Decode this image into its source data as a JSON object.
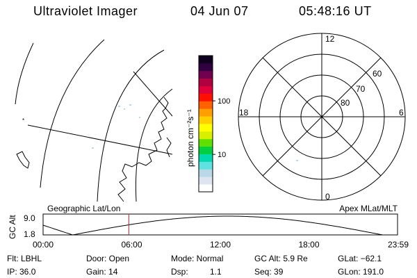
{
  "header": {
    "title": "Ultraviolet Imager",
    "date": "04 Jun 07",
    "time": "05:48:16 UT"
  },
  "colorbar": {
    "unit_label": "photon cm⁻²s⁻¹",
    "tick_labels": [
      "100",
      "10"
    ],
    "tick_values": [
      100,
      10
    ],
    "range": [
      2,
      700
    ],
    "colors": [
      "#ffffff",
      "#dde6f0",
      "#b8d8e8",
      "#60e0e0",
      "#00d8b0",
      "#00d040",
      "#60e000",
      "#d8f000",
      "#ffff00",
      "#ffd000",
      "#ffa000",
      "#ff6000",
      "#ff1000",
      "#e0003a",
      "#b00040",
      "#700050",
      "#300040",
      "#100020"
    ]
  },
  "polar_plot": {
    "mlt_labels": {
      "top": "12",
      "left": "18",
      "right": "6",
      "bottom": "0"
    },
    "lat_labels": [
      "60",
      "70",
      "80"
    ],
    "lat_values": [
      60,
      70,
      80
    ]
  },
  "timeline": {
    "y_axis_label": "GC Alt",
    "y_ticks": [
      "9.0",
      "1.8"
    ],
    "y_range": [
      1.8,
      9.0
    ],
    "left_label": "Geographic Lat/Lon",
    "right_label": "Apex MLat/MLT",
    "x_ticks": [
      "00:00",
      "06:00",
      "12:00",
      "18:00",
      "23:59"
    ],
    "current_time_hours": 5.805,
    "cursor_color": "#c02030"
  },
  "info": {
    "filter": "Flt: LBHL",
    "ip": "IP: 36.0",
    "door": "Door: Open",
    "gain": "Gain: 14",
    "mode": "Mode: Normal",
    "dsp_label": "Dsp:",
    "dsp_value": "1.1",
    "gc_alt": "GC Alt: 5.9 Re",
    "seq": "Seq: 39",
    "glat": "GLat: −62.1",
    "glon": "GLon: 191.0"
  }
}
